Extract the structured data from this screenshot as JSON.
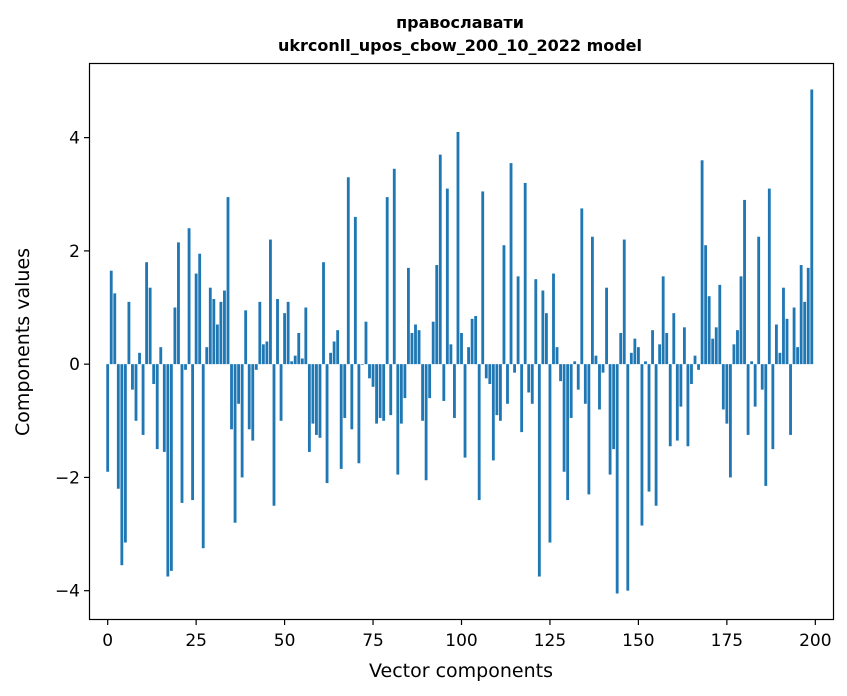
{
  "chart_data": {
    "type": "bar",
    "title": [
      "православати",
      "ukrconll_upos_cbow_200_10_2022 model"
    ],
    "xlabel": "Vector components",
    "ylabel": "Components values",
    "xlim": [
      -5,
      205
    ],
    "ylim": [
      -4.5,
      5.3
    ],
    "xticks": [
      0,
      25,
      50,
      75,
      100,
      125,
      150,
      175,
      200
    ],
    "yticks": [
      -4,
      -2,
      0,
      2,
      4
    ],
    "ytick_labels": [
      "−4",
      "−2",
      "0",
      "2",
      "4"
    ],
    "bar_color": "#1f77b4",
    "x": [
      0,
      1,
      2,
      3,
      4,
      5,
      6,
      7,
      8,
      9,
      10,
      11,
      12,
      13,
      14,
      15,
      16,
      17,
      18,
      19,
      20,
      21,
      22,
      23,
      24,
      25,
      26,
      27,
      28,
      29,
      30,
      31,
      32,
      33,
      34,
      35,
      36,
      37,
      38,
      39,
      40,
      41,
      42,
      43,
      44,
      45,
      46,
      47,
      48,
      49,
      50,
      51,
      52,
      53,
      54,
      55,
      56,
      57,
      58,
      59,
      60,
      61,
      62,
      63,
      64,
      65,
      66,
      67,
      68,
      69,
      70,
      71,
      72,
      73,
      74,
      75,
      76,
      77,
      78,
      79,
      80,
      81,
      82,
      83,
      84,
      85,
      86,
      87,
      88,
      89,
      90,
      91,
      92,
      93,
      94,
      95,
      96,
      97,
      98,
      99,
      100,
      101,
      102,
      103,
      104,
      105,
      106,
      107,
      108,
      109,
      110,
      111,
      112,
      113,
      114,
      115,
      116,
      117,
      118,
      119,
      120,
      121,
      122,
      123,
      124,
      125,
      126,
      127,
      128,
      129,
      130,
      131,
      132,
      133,
      134,
      135,
      136,
      137,
      138,
      139,
      140,
      141,
      142,
      143,
      144,
      145,
      146,
      147,
      148,
      149,
      150,
      151,
      152,
      153,
      154,
      155,
      156,
      157,
      158,
      159,
      160,
      161,
      162,
      163,
      164,
      165,
      166,
      167,
      168,
      169,
      170,
      171,
      172,
      173,
      174,
      175,
      176,
      177,
      178,
      179,
      180,
      181,
      182,
      183,
      184,
      185,
      186,
      187,
      188,
      189,
      190,
      191,
      192,
      193,
      194,
      195,
      196,
      197,
      198,
      199
    ],
    "values": [
      -1.9,
      1.65,
      1.25,
      -2.2,
      -3.55,
      -3.15,
      1.1,
      -0.45,
      -1.0,
      0.2,
      -1.25,
      1.8,
      1.35,
      -0.35,
      -1.5,
      0.3,
      -1.55,
      -3.75,
      -3.65,
      1.0,
      2.15,
      -2.45,
      -0.1,
      2.4,
      -2.4,
      1.6,
      1.95,
      -3.25,
      0.3,
      1.35,
      1.15,
      0.7,
      1.1,
      1.3,
      2.95,
      -1.15,
      -2.8,
      -0.7,
      -2.0,
      0.95,
      -1.15,
      -1.35,
      -0.1,
      1.1,
      0.35,
      0.4,
      2.2,
      -2.5,
      1.15,
      -1.0,
      0.9,
      1.1,
      0.05,
      0.15,
      0.55,
      0.1,
      1.0,
      -1.55,
      -1.05,
      -1.25,
      -1.3,
      1.8,
      -2.1,
      0.2,
      0.4,
      0.6,
      -1.85,
      -0.95,
      3.3,
      -1.15,
      2.6,
      -1.75,
      0.0,
      0.75,
      -0.25,
      -0.4,
      -1.05,
      -0.95,
      -1.0,
      2.95,
      -0.9,
      3.45,
      -1.95,
      -1.05,
      -0.6,
      1.7,
      0.55,
      0.7,
      0.6,
      -1.0,
      -2.05,
      -0.6,
      0.75,
      1.75,
      3.7,
      -0.65,
      3.1,
      0.35,
      -0.95,
      4.1,
      0.55,
      -1.65,
      0.3,
      0.8,
      0.85,
      -2.4,
      3.05,
      -0.25,
      -0.35,
      -1.7,
      -0.9,
      -1.0,
      2.1,
      -0.7,
      3.55,
      -0.15,
      1.55,
      -1.2,
      3.2,
      -0.5,
      -0.7,
      1.5,
      -3.75,
      1.3,
      0.9,
      -3.15,
      1.6,
      0.3,
      -0.3,
      -1.9,
      -2.4,
      -0.95,
      0.05,
      -0.45,
      2.75,
      -0.7,
      -2.3,
      2.25,
      0.15,
      -0.8,
      -0.15,
      1.35,
      -1.95,
      -1.5,
      -4.05,
      0.55,
      2.2,
      -4.0,
      0.2,
      0.45,
      0.3,
      -2.85,
      0.05,
      -2.25,
      0.6,
      -2.5,
      0.35,
      1.55,
      0.55,
      -1.45,
      0.9,
      -1.35,
      -0.75,
      0.65,
      -1.45,
      -0.35,
      0.15,
      -0.1,
      3.6,
      2.1,
      1.2,
      0.45,
      0.65,
      1.4,
      -0.8,
      -1.05,
      -2.0,
      0.35,
      0.6,
      1.55,
      2.9,
      -1.25,
      0.05,
      -0.75,
      2.25,
      -0.45,
      -2.15,
      3.1,
      -1.5,
      0.7,
      0.2,
      1.35,
      0.8,
      -1.25,
      1.0,
      0.3,
      1.75,
      1.1,
      1.7,
      4.85
    ]
  }
}
